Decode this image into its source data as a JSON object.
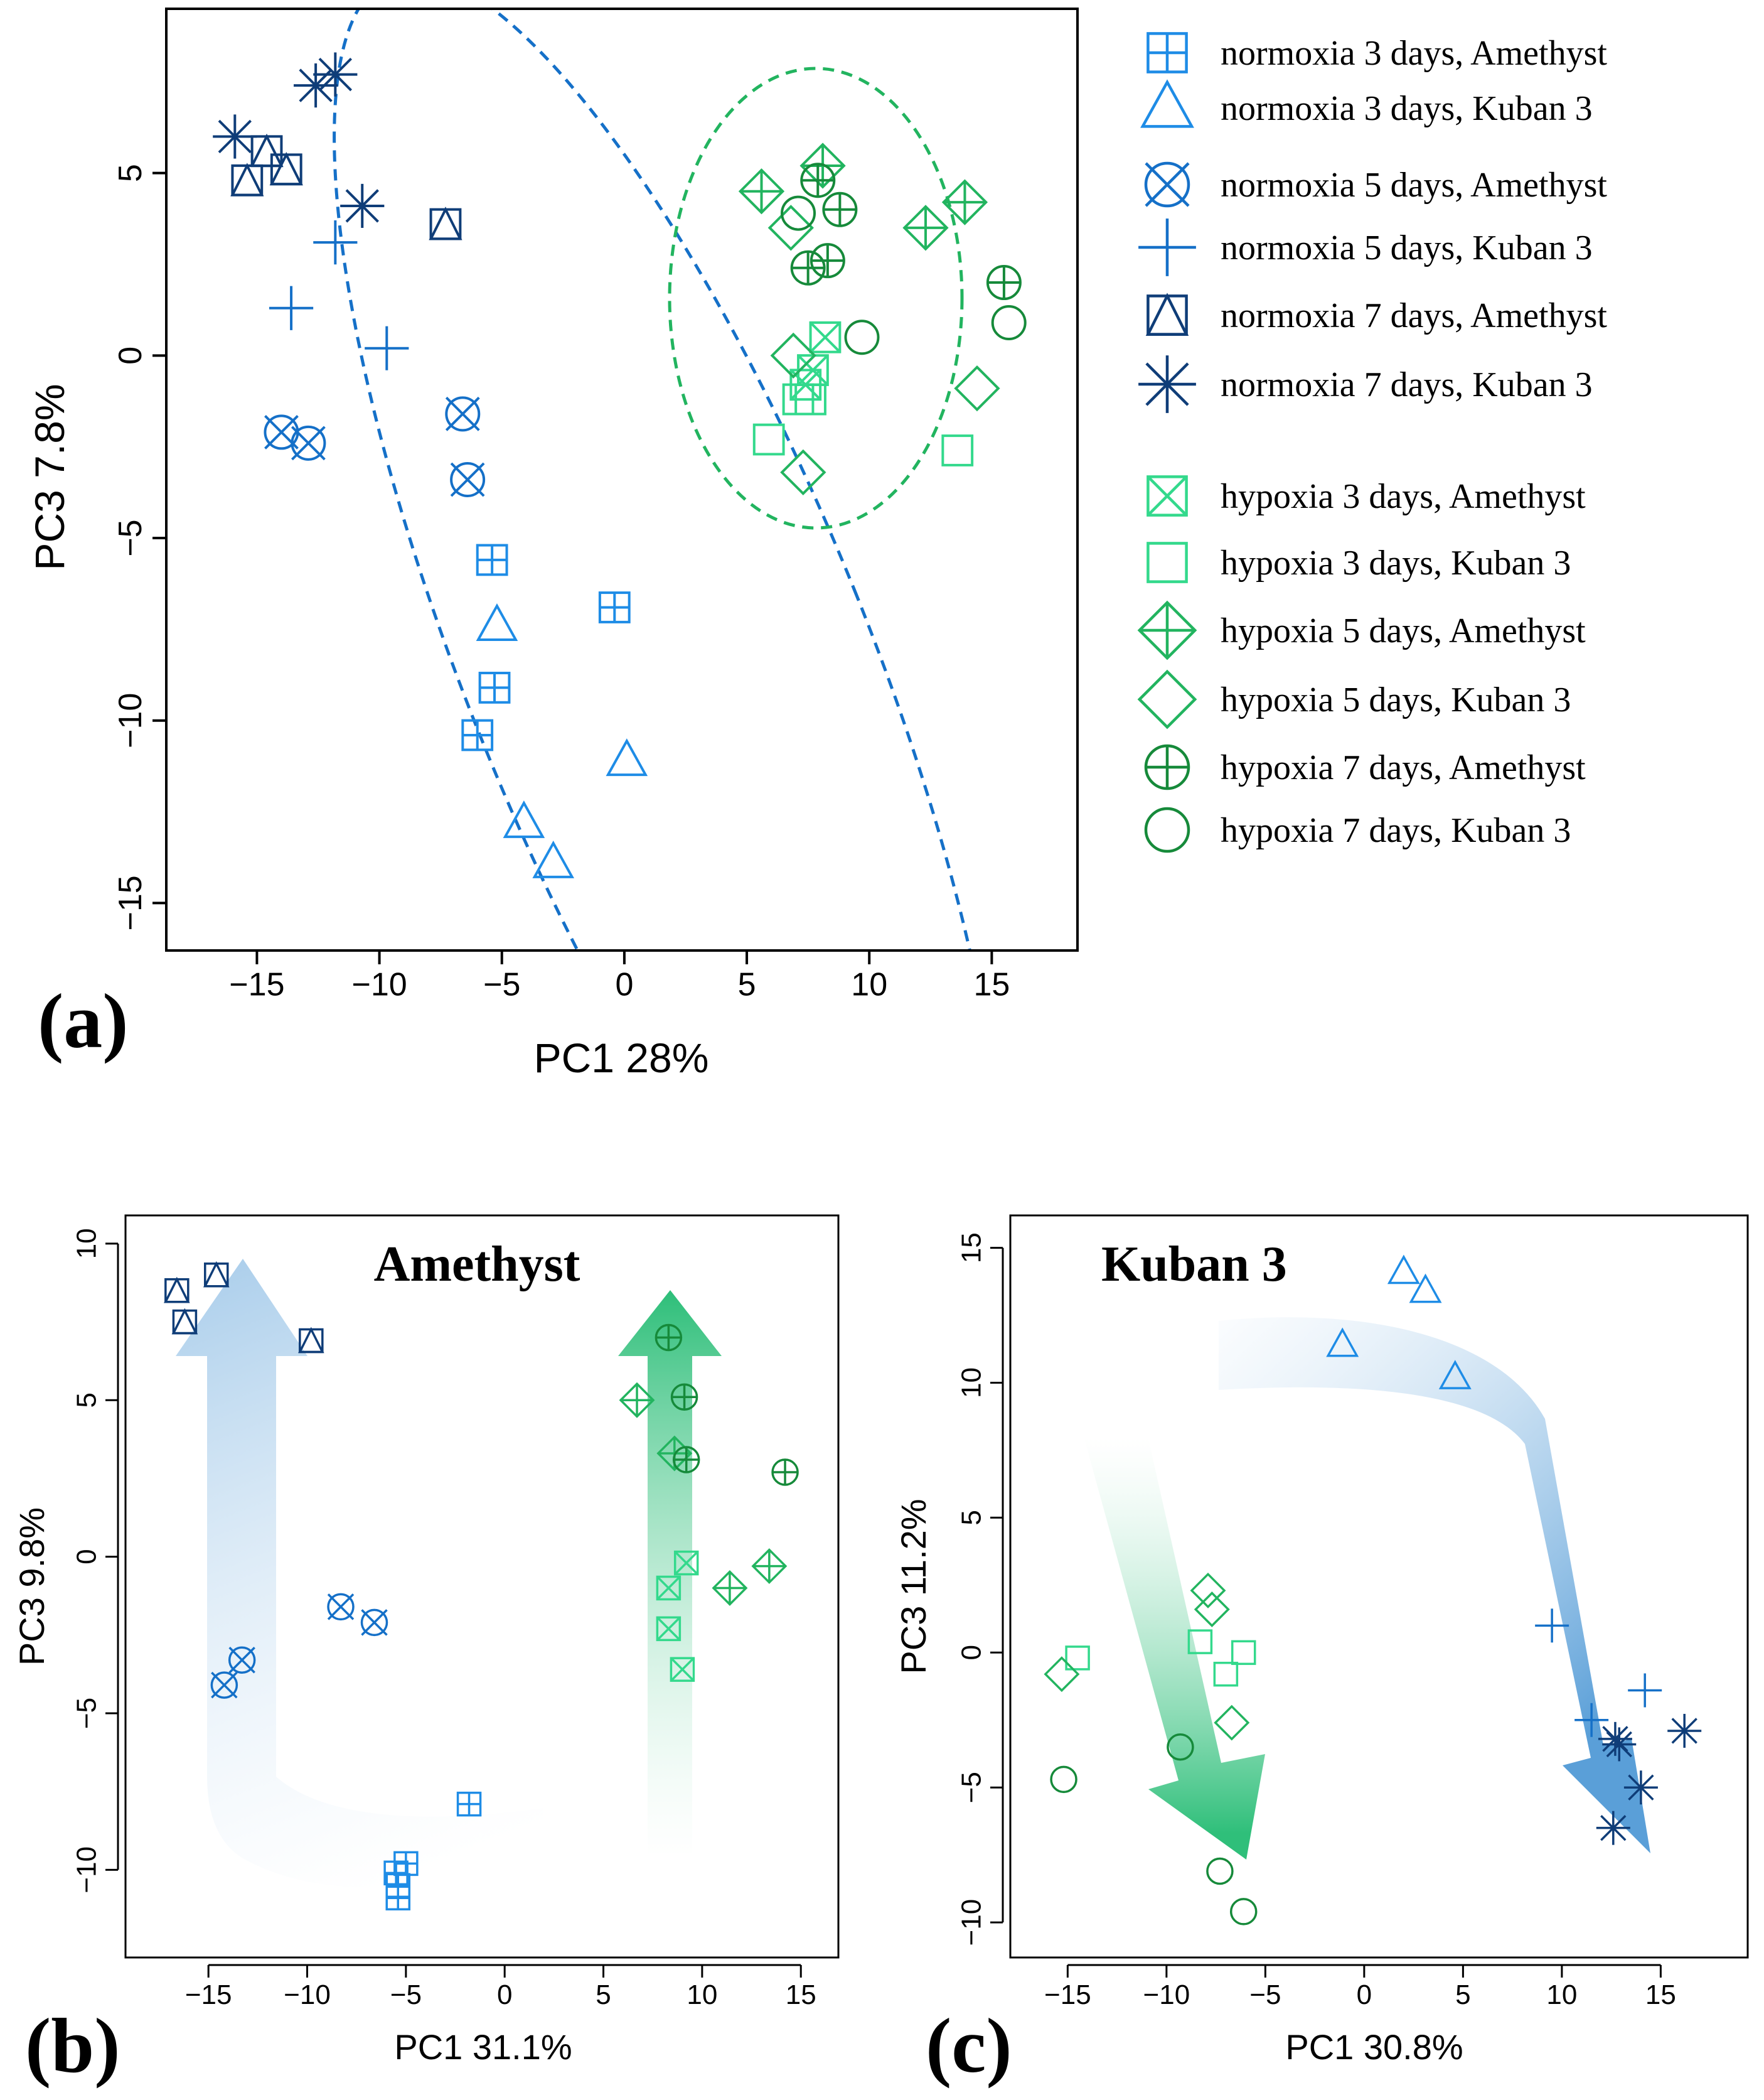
{
  "colors": {
    "norm_light": "#1e8ce6",
    "norm_mid": "#1570c8",
    "norm_dark": "#0f3d78",
    "hyp_light": "#33d98c",
    "hyp_mid": "#22b45f",
    "hyp_dark": "#168a3a",
    "arrow_blue": "#5a9fd8",
    "arrow_green": "#2fbf7a"
  },
  "legend": {
    "groups": [
      [
        {
          "label": "normoxia 3 days, Amethyst",
          "marker": "boxplus",
          "color": "norm_light"
        },
        {
          "label": "normoxia 3 days, Kuban 3",
          "marker": "triangle",
          "color": "norm_light"
        },
        {
          "label": "normoxia 5 days, Amethyst",
          "marker": "circlex",
          "color": "norm_mid"
        },
        {
          "label": "normoxia 5 days, Kuban 3",
          "marker": "plus",
          "color": "norm_mid"
        },
        {
          "label": "normoxia 7 days, Amethyst",
          "marker": "squaretri",
          "color": "norm_dark"
        },
        {
          "label": "normoxia 7 days, Kuban 3",
          "marker": "asterisk",
          "color": "norm_dark"
        }
      ],
      [
        {
          "label": "hypoxia 3 days, Amethyst",
          "marker": "squarex",
          "color": "hyp_light"
        },
        {
          "label": "hypoxia 3 days, Kuban 3",
          "marker": "square",
          "color": "hyp_light"
        },
        {
          "label": "hypoxia 5 days, Amethyst",
          "marker": "diamondplus",
          "color": "hyp_mid"
        },
        {
          "label": "hypoxia 5 days, Kuban 3",
          "marker": "diamond",
          "color": "hyp_mid"
        },
        {
          "label": "hypoxia 7 days, Amethyst",
          "marker": "circleplus",
          "color": "hyp_dark"
        },
        {
          "label": "hypoxia 7 days, Kuban 3",
          "marker": "circle",
          "color": "hyp_dark"
        }
      ]
    ]
  },
  "chart_data": [
    {
      "panel": "a",
      "panel_label": "(a)",
      "type": "scatter",
      "title": "",
      "xlabel": "PC1 28%",
      "ylabel": "PC3 7.8%",
      "xlim": [
        -18.7,
        18.5
      ],
      "ylim": [
        -16.3,
        9.5
      ],
      "xticks": [
        -15,
        -10,
        -5,
        0,
        5,
        10,
        15
      ],
      "yticks": [
        -15,
        -10,
        -5,
        0,
        5
      ],
      "xtick_labels": [
        "−15",
        "−10",
        "−5",
        "0",
        "5",
        "10",
        "15"
      ],
      "ytick_labels": [
        "−15",
        "−10",
        "−5",
        "0",
        "5"
      ],
      "series": [
        {
          "name": "normoxia 3 days, Amethyst",
          "marker": "boxplus",
          "color": "norm_light",
          "points": [
            [
              -5.4,
              -5.6
            ],
            [
              -5.3,
              -9.1
            ],
            [
              -6,
              -10.4
            ],
            [
              -0.4,
              -6.9
            ]
          ]
        },
        {
          "name": "normoxia 3 days, Kuban 3",
          "marker": "triangle",
          "color": "norm_light",
          "points": [
            [
              -5.2,
              -7.4
            ],
            [
              0.1,
              -11.1
            ],
            [
              -4.1,
              -12.8
            ],
            [
              -2.9,
              -13.9
            ]
          ]
        },
        {
          "name": "normoxia 5 days, Amethyst",
          "marker": "circlex",
          "color": "norm_mid",
          "points": [
            [
              -14,
              -2.1
            ],
            [
              -12.9,
              -2.4
            ],
            [
              -6.6,
              -1.6
            ],
            [
              -6.4,
              -3.4
            ]
          ]
        },
        {
          "name": "normoxia 5 days, Kuban 3",
          "marker": "plus",
          "color": "norm_mid",
          "points": [
            [
              -11.8,
              3.1
            ],
            [
              -13.6,
              1.3
            ],
            [
              -9.7,
              0.2
            ]
          ]
        },
        {
          "name": "normoxia 7 days, Amethyst",
          "marker": "squaretri",
          "color": "norm_dark",
          "points": [
            [
              -14.6,
              5.6
            ],
            [
              -15.4,
              4.8
            ],
            [
              -13.8,
              5.1
            ],
            [
              -7.3,
              3.6
            ]
          ]
        },
        {
          "name": "normoxia 7 days, Kuban 3",
          "marker": "asterisk",
          "color": "norm_dark",
          "points": [
            [
              -15.9,
              6
            ],
            [
              -12.6,
              7.4
            ],
            [
              -11.8,
              7.7
            ],
            [
              -10.7,
              4.1
            ]
          ]
        },
        {
          "name": "hypoxia 3 days, Amethyst",
          "marker": "squarex",
          "color": "hyp_light",
          "points": [
            [
              8.2,
              0.5
            ],
            [
              7.7,
              -0.4
            ],
            [
              7.4,
              -0.8
            ]
          ]
        },
        {
          "name": "hypoxia 3 days, Kuban 3",
          "marker": "square",
          "color": "hyp_light",
          "points": [
            [
              5.9,
              -2.3
            ],
            [
              7.1,
              -1.2
            ],
            [
              7.6,
              -1.2
            ],
            [
              13.6,
              -2.6
            ]
          ]
        },
        {
          "name": "hypoxia 5 days, Amethyst",
          "marker": "diamondplus",
          "color": "hyp_mid",
          "points": [
            [
              5.6,
              4.5
            ],
            [
              8.1,
              5.2
            ],
            [
              12.3,
              3.5
            ],
            [
              13.9,
              4.2
            ]
          ]
        },
        {
          "name": "hypoxia 5 days, Kuban 3",
          "marker": "diamond",
          "color": "hyp_mid",
          "points": [
            [
              6.8,
              3.5
            ],
            [
              6.9,
              0
            ],
            [
              7.3,
              -3.2
            ],
            [
              14.4,
              -0.9
            ]
          ]
        },
        {
          "name": "hypoxia 7 days, Amethyst",
          "marker": "circleplus",
          "color": "hyp_dark",
          "points": [
            [
              7.9,
              4.8
            ],
            [
              8.8,
              4
            ],
            [
              8.3,
              2.6
            ],
            [
              7.5,
              2.4
            ],
            [
              15.5,
              2
            ]
          ]
        },
        {
          "name": "hypoxia 7 days, Kuban 3",
          "marker": "circle",
          "color": "hyp_dark",
          "points": [
            [
              7.1,
              3.9
            ],
            [
              9.7,
              0.5
            ],
            [
              15.7,
              0.9
            ]
          ]
        }
      ]
    },
    {
      "panel": "b",
      "panel_label": "(b)",
      "type": "scatter",
      "title": "Amethyst",
      "xlabel": "PC1 31.1%",
      "ylabel": "PC3 9.8%",
      "xlim": [
        -19.2,
        16.9
      ],
      "ylim": [
        -12.8,
        10.9
      ],
      "xticks": [
        -15,
        -10,
        -5,
        0,
        5,
        10,
        15
      ],
      "yticks": [
        -10,
        -5,
        0,
        5,
        10
      ],
      "xtick_labels": [
        "−15",
        "−10",
        "−5",
        "0",
        "5",
        "10",
        "15"
      ],
      "ytick_labels": [
        "−10",
        "−5",
        "0",
        "5",
        "10"
      ],
      "series": [
        {
          "name": "normoxia 3 days, Amethyst",
          "marker": "boxplus",
          "color": "norm_light",
          "points": [
            [
              -1.8,
              -7.9
            ],
            [
              -5.5,
              -10.1
            ],
            [
              -5,
              -9.8
            ],
            [
              -5.4,
              -10.5
            ],
            [
              -5.4,
              -10.9
            ]
          ]
        },
        {
          "name": "normoxia 5 days, Amethyst",
          "marker": "circlex",
          "color": "norm_mid",
          "points": [
            [
              -14.2,
              -4.1
            ],
            [
              -13.3,
              -3.3
            ],
            [
              -8.3,
              -1.6
            ],
            [
              -6.6,
              -2.1
            ]
          ]
        },
        {
          "name": "normoxia 7 days, Amethyst",
          "marker": "squaretri",
          "color": "norm_dark",
          "points": [
            [
              -16.6,
              8.5
            ],
            [
              -14.6,
              9
            ],
            [
              -16.2,
              7.5
            ],
            [
              -9.8,
              6.9
            ]
          ]
        },
        {
          "name": "hypoxia 3 days, Amethyst",
          "marker": "squarex",
          "color": "hyp_light",
          "points": [
            [
              9.2,
              -0.2
            ],
            [
              8.3,
              -1
            ],
            [
              8.3,
              -2.3
            ],
            [
              9,
              -3.6
            ]
          ]
        },
        {
          "name": "hypoxia 5 days, Amethyst",
          "marker": "diamondplus",
          "color": "hyp_mid",
          "points": [
            [
              6.7,
              5
            ],
            [
              8.6,
              3.3
            ],
            [
              11.4,
              -1
            ],
            [
              13.4,
              -0.3
            ]
          ]
        },
        {
          "name": "hypoxia 7 days, Amethyst",
          "marker": "circleplus",
          "color": "hyp_dark",
          "points": [
            [
              8.3,
              7
            ],
            [
              9.1,
              5.1
            ],
            [
              9.2,
              3.1
            ],
            [
              14.2,
              2.7
            ]
          ]
        }
      ]
    },
    {
      "panel": "c",
      "panel_label": "(c)",
      "type": "scatter",
      "title": "Kuban 3",
      "xlabel": "PC1 30.8%",
      "ylabel": "PC3 11.2%",
      "xlim": [
        -17.9,
        19.4
      ],
      "ylim": [
        -11.3,
        16.2
      ],
      "xticks": [
        -15,
        -10,
        -5,
        0,
        5,
        10,
        15
      ],
      "yticks": [
        -10,
        -5,
        0,
        5,
        10,
        15
      ],
      "xtick_labels": [
        "−15",
        "−10",
        "−5",
        "0",
        "5",
        "10",
        "15"
      ],
      "ytick_labels": [
        "−10",
        "−5",
        "0",
        "5",
        "10",
        "15"
      ],
      "series": [
        {
          "name": "normoxia 3 days, Kuban 3",
          "marker": "triangle",
          "color": "norm_light",
          "points": [
            [
              -1.1,
              11.4
            ],
            [
              2,
              14.1
            ],
            [
              3.1,
              13.4
            ],
            [
              4.6,
              10.2
            ]
          ]
        },
        {
          "name": "normoxia 5 days, Kuban 3",
          "marker": "plus",
          "color": "norm_mid",
          "points": [
            [
              9.5,
              1
            ],
            [
              11.5,
              -2.5
            ],
            [
              14.2,
              -1.4
            ]
          ]
        },
        {
          "name": "normoxia 7 days, Kuban 3",
          "marker": "asterisk",
          "color": "norm_dark",
          "points": [
            [
              12.7,
              -3.2
            ],
            [
              12.9,
              -3.4
            ],
            [
              16.2,
              -2.9
            ],
            [
              14,
              -5
            ],
            [
              12.6,
              -6.5
            ]
          ]
        },
        {
          "name": "hypoxia 3 days, Kuban 3",
          "marker": "square",
          "color": "hyp_light",
          "points": [
            [
              -14.5,
              -0.2
            ],
            [
              -8.3,
              0.4
            ],
            [
              -6.1,
              0
            ],
            [
              -7,
              -0.8
            ]
          ]
        },
        {
          "name": "hypoxia 5 days, Kuban 3",
          "marker": "diamond",
          "color": "hyp_mid",
          "points": [
            [
              -15.3,
              -0.8
            ],
            [
              -7.9,
              2.3
            ],
            [
              -7.7,
              1.6
            ],
            [
              -6.7,
              -2.6
            ]
          ]
        },
        {
          "name": "hypoxia 7 days, Kuban 3",
          "marker": "circle",
          "color": "hyp_dark",
          "points": [
            [
              -15.2,
              -4.7
            ],
            [
              -9.3,
              -3.5
            ],
            [
              -7.3,
              -8.1
            ],
            [
              -6.1,
              -9.6
            ]
          ]
        }
      ]
    }
  ]
}
